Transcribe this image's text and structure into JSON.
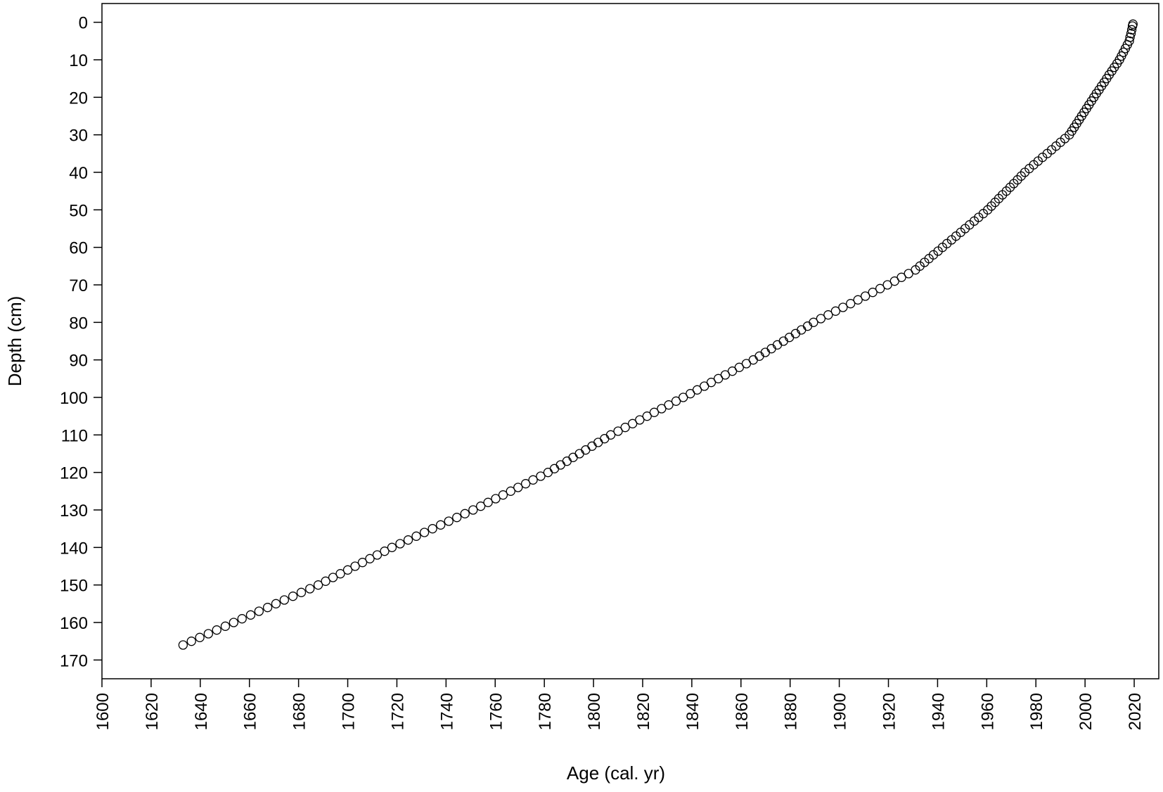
{
  "chart_data": {
    "type": "scatter",
    "x_label": "Age (cal. yr)",
    "y_label": "Depth (cm)",
    "x": [
      2019.5,
      2019.3,
      2019.0,
      2018.7,
      2018.3,
      2018.0,
      2017.2,
      2016.4,
      2015.6,
      2014.8,
      2014.0,
      2013.0,
      2011.9,
      2010.9,
      2009.8,
      2008.8,
      2007.8,
      2006.7,
      2005.7,
      2004.6,
      2003.6,
      2002.6,
      2001.6,
      2000.6,
      1999.6,
      1998.6,
      1997.6,
      1996.6,
      1995.6,
      1994.6,
      1993.6,
      1991.8,
      1990.0,
      1988.2,
      1986.4,
      1984.6,
      1982.7,
      1980.9,
      1979.1,
      1977.3,
      1975.5,
      1974.0,
      1972.5,
      1971.0,
      1969.5,
      1968.0,
      1966.4,
      1964.9,
      1963.4,
      1961.9,
      1960.4,
      1958.6,
      1956.7,
      1954.9,
      1953.0,
      1951.2,
      1949.4,
      1947.5,
      1945.7,
      1943.8,
      1942.0,
      1940.2,
      1938.3,
      1936.5,
      1934.7,
      1932.8,
      1931.0,
      1928.2,
      1925.3,
      1922.5,
      1919.6,
      1916.6,
      1913.6,
      1910.6,
      1907.6,
      1904.6,
      1901.5,
      1898.5,
      1895.5,
      1892.5,
      1889.5,
      1887.1,
      1884.6,
      1882.2,
      1879.7,
      1877.3,
      1874.8,
      1872.4,
      1869.9,
      1867.5,
      1865.0,
      1862.2,
      1859.3,
      1856.5,
      1853.6,
      1850.8,
      1847.9,
      1845.1,
      1842.2,
      1839.4,
      1836.5,
      1833.6,
      1830.6,
      1827.7,
      1824.7,
      1821.8,
      1818.8,
      1815.9,
      1812.9,
      1810.0,
      1807.0,
      1804.5,
      1801.9,
      1799.4,
      1796.8,
      1794.3,
      1791.7,
      1789.2,
      1786.6,
      1784.1,
      1781.5,
      1778.5,
      1775.4,
      1772.4,
      1769.3,
      1766.3,
      1763.2,
      1760.2,
      1757.1,
      1754.1,
      1751.0,
      1747.7,
      1744.4,
      1741.1,
      1737.8,
      1734.5,
      1731.2,
      1727.9,
      1724.6,
      1721.3,
      1718.0,
      1715.0,
      1712.0,
      1709.0,
      1706.0,
      1703.0,
      1700.0,
      1697.0,
      1694.0,
      1691.0,
      1688.0,
      1684.6,
      1681.1,
      1677.7,
      1674.2,
      1670.8,
      1667.4,
      1663.9,
      1660.5,
      1657.0,
      1653.6,
      1650.2,
      1646.7,
      1643.3,
      1639.8,
      1636.4,
      1633.0
    ],
    "y": [
      0.5,
      1,
      2,
      3,
      4,
      5,
      6,
      7,
      8,
      9,
      10,
      11,
      12,
      13,
      14,
      15,
      16,
      17,
      18,
      19,
      20,
      21,
      22,
      23,
      24,
      25,
      26,
      27,
      28,
      29,
      30,
      31,
      32,
      33,
      34,
      35,
      36,
      37,
      38,
      39,
      40,
      41,
      42,
      43,
      44,
      45,
      46,
      47,
      48,
      49,
      50,
      51,
      52,
      53,
      54,
      55,
      56,
      57,
      58,
      59,
      60,
      61,
      62,
      63,
      64,
      65,
      66,
      67,
      68,
      69,
      70,
      71,
      72,
      73,
      74,
      75,
      76,
      77,
      78,
      79,
      80,
      81,
      82,
      83,
      84,
      85,
      86,
      87,
      88,
      89,
      90,
      91,
      92,
      93,
      94,
      95,
      96,
      97,
      98,
      99,
      100,
      101,
      102,
      103,
      104,
      105,
      106,
      107,
      108,
      109,
      110,
      111,
      112,
      113,
      114,
      115,
      116,
      117,
      118,
      119,
      120,
      121,
      122,
      123,
      124,
      125,
      126,
      127,
      128,
      129,
      130,
      131,
      132,
      133,
      134,
      135,
      136,
      137,
      138,
      139,
      140,
      141,
      142,
      143,
      144,
      145,
      146,
      147,
      148,
      149,
      150,
      151,
      152,
      153,
      154,
      155,
      156,
      157,
      158,
      159,
      160,
      161,
      162,
      163,
      164,
      165,
      166
    ],
    "xlim": [
      1600,
      2030
    ],
    "ylim": [
      175,
      -5
    ],
    "xticks": [
      1600,
      1620,
      1640,
      1660,
      1680,
      1700,
      1720,
      1740,
      1760,
      1780,
      1800,
      1820,
      1840,
      1860,
      1880,
      1900,
      1920,
      1940,
      1960,
      1980,
      2000,
      2020
    ],
    "yticks": [
      0,
      10,
      20,
      30,
      40,
      50,
      60,
      70,
      80,
      90,
      100,
      110,
      120,
      130,
      140,
      150,
      160,
      170
    ],
    "color": "#000000",
    "marker": "open-circle"
  }
}
